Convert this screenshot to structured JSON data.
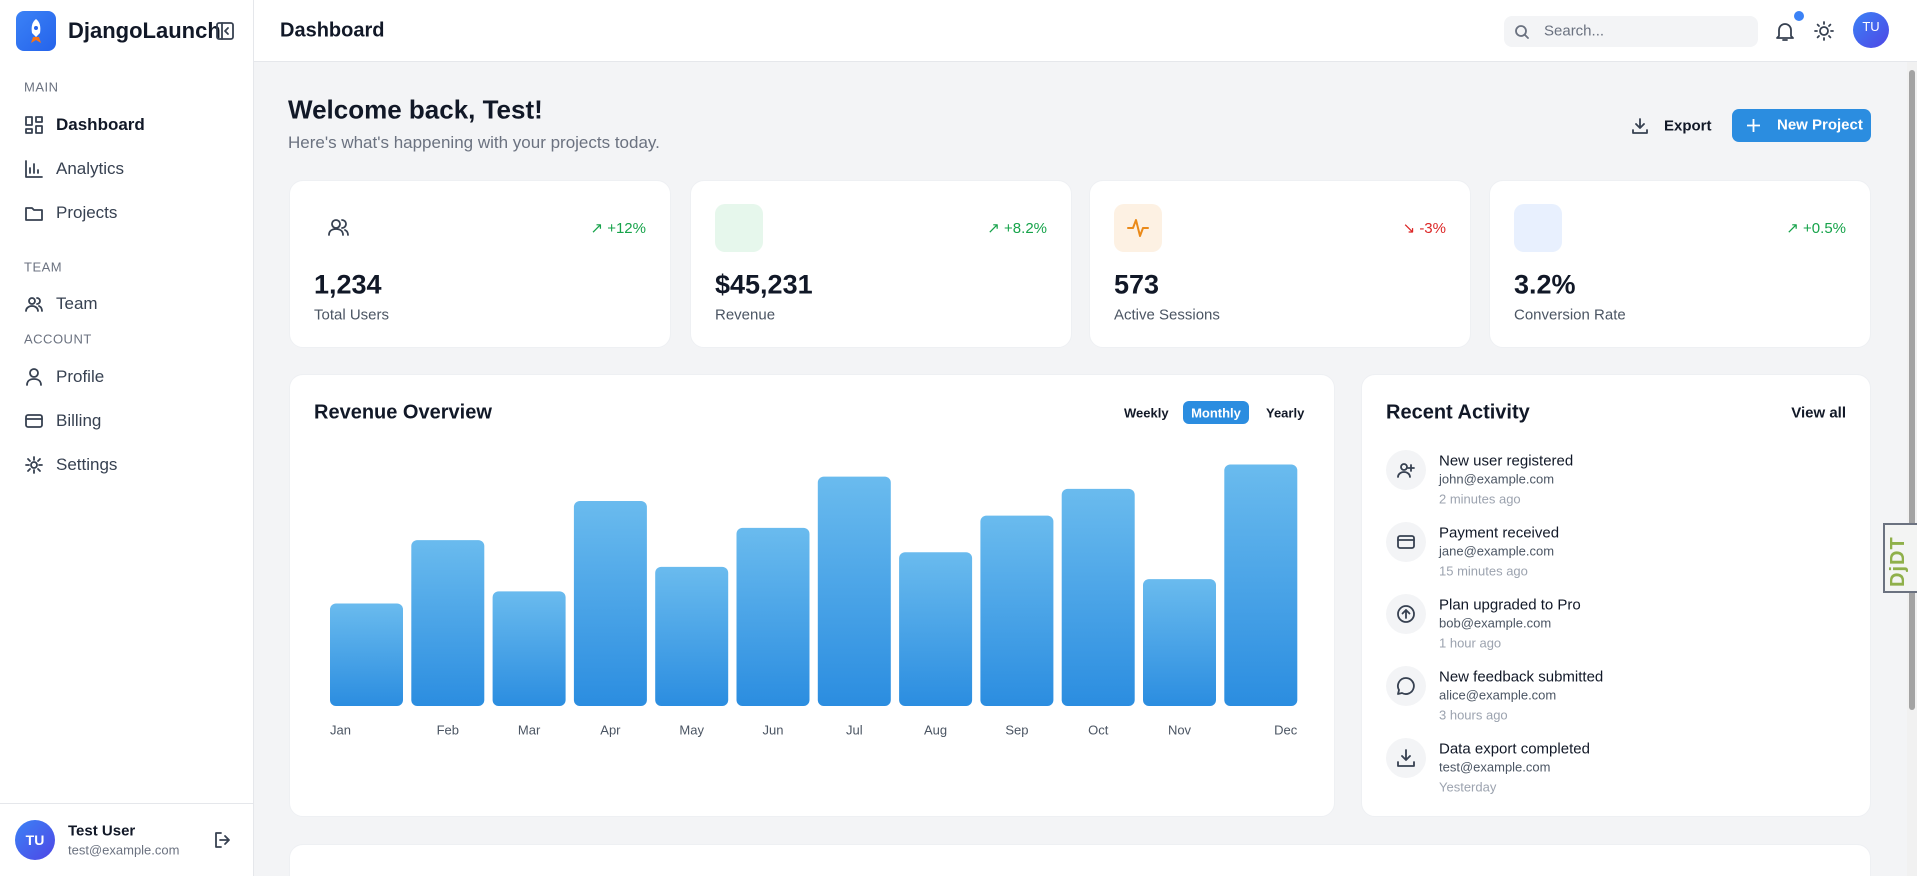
{
  "sidebar": {
    "brand": "DjangoLaunch",
    "sections": [
      {
        "title": "MAIN",
        "items": [
          "Dashboard",
          "Analytics",
          "Projects"
        ]
      },
      {
        "title": "TEAM",
        "items": [
          "Team"
        ]
      },
      {
        "title": "ACCOUNT",
        "items": [
          "Profile",
          "Billing",
          "Settings"
        ]
      }
    ],
    "user": {
      "initials": "TU",
      "name": "Test User",
      "email": "test@example.com"
    }
  },
  "header": {
    "title": "Dashboard",
    "search_placeholder": "Search...",
    "avatar": "TU"
  },
  "welcome": {
    "title": "Welcome back, Test!",
    "subtitle": "Here's what's happening with your projects today.",
    "export": "Export",
    "new_project": "New Project"
  },
  "stats": [
    {
      "value": "1,234",
      "label": "Total Users",
      "change": "+12%"
    },
    {
      "value": "$45,231",
      "label": "Revenue",
      "change": "+8.2%"
    },
    {
      "value": "573",
      "label": "Active Sessions",
      "change": "-3%"
    },
    {
      "value": "3.2%",
      "label": "Conversion Rate",
      "change": "+0.5%"
    }
  ],
  "revenue_chart": {
    "type": "bar",
    "title": "Revenue Overview",
    "periods": [
      "Weekly",
      "Monthly",
      "Yearly"
    ],
    "categories": [
      "Jan",
      "Feb",
      "Mar",
      "Apr",
      "May",
      "Jun",
      "Jul",
      "Aug",
      "Sep",
      "Oct",
      "Nov",
      "Dec"
    ],
    "values": [
      42,
      68,
      47,
      84,
      57,
      73,
      94,
      63,
      78,
      89,
      52,
      99
    ],
    "color": "#2b8de0"
  },
  "activity": {
    "title": "Recent Activity",
    "view_all": "View all",
    "items": [
      {
        "title": "New user registered",
        "email": "john@example.com",
        "time": "2 minutes ago",
        "icon": "user-plus"
      },
      {
        "title": "Payment received",
        "email": "jane@example.com",
        "time": "15 minutes ago",
        "icon": "card"
      },
      {
        "title": "Plan upgraded to Pro",
        "email": "bob@example.com",
        "time": "1 hour ago",
        "icon": "upgrade"
      },
      {
        "title": "New feedback submitted",
        "email": "alice@example.com",
        "time": "3 hours ago",
        "icon": "message"
      },
      {
        "title": "Data export completed",
        "email": "test@example.com",
        "time": "Yesterday",
        "icon": "download"
      }
    ]
  },
  "debug_toolbar": "DjDT"
}
